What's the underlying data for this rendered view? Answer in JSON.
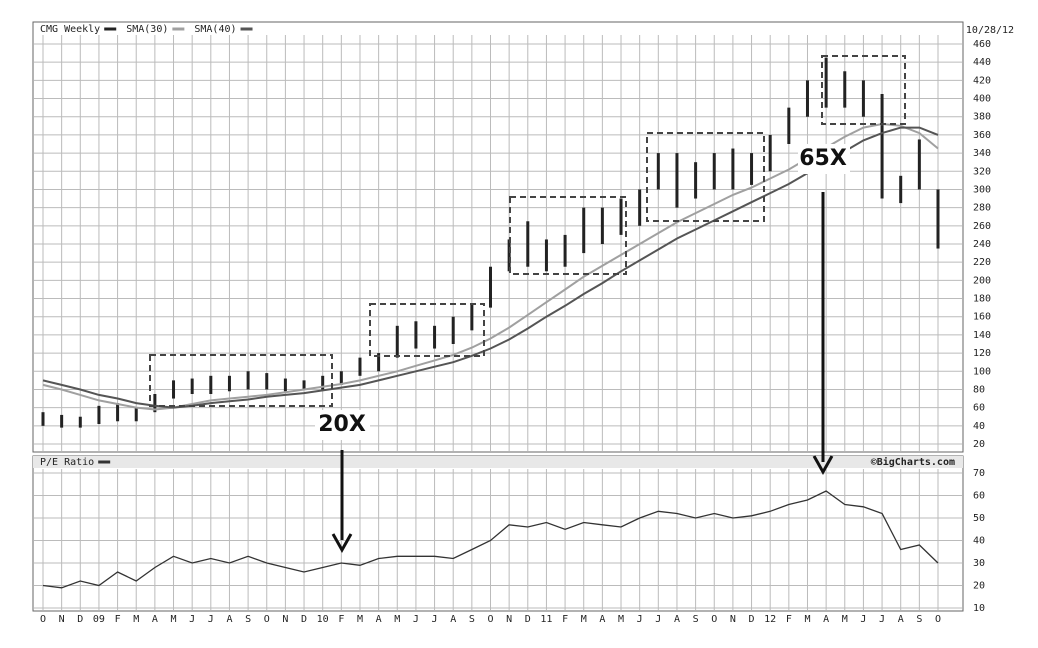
{
  "chart_data": [
    {
      "type": "range-bar",
      "date": "10/28/12",
      "annotations": [
        "20X",
        "65X"
      ],
      "ylim": [
        20,
        460
      ],
      "yticks": [
        20,
        40,
        60,
        80,
        100,
        120,
        140,
        160,
        180,
        200,
        220,
        240,
        260,
        280,
        300,
        320,
        340,
        360,
        380,
        400,
        420,
        440,
        460
      ],
      "grid": true,
      "series": [
        {
          "name": "CMG Weekly",
          "color": "#222222",
          "low": [
            40,
            38,
            38,
            42,
            45,
            45,
            55,
            70,
            75,
            75,
            78,
            80,
            80,
            78,
            80,
            80,
            85,
            95,
            100,
            115,
            125,
            125,
            130,
            145,
            170,
            210,
            215,
            210,
            215,
            230,
            240,
            250,
            260,
            300,
            280,
            290,
            300,
            300,
            305,
            320,
            350,
            380,
            390,
            390,
            380,
            290,
            285,
            300,
            235
          ],
          "high": [
            55,
            52,
            50,
            62,
            65,
            60,
            75,
            90,
            92,
            95,
            95,
            100,
            98,
            92,
            90,
            95,
            100,
            115,
            120,
            150,
            155,
            150,
            160,
            175,
            215,
            245,
            265,
            245,
            250,
            280,
            280,
            290,
            300,
            340,
            340,
            330,
            340,
            345,
            340,
            360,
            390,
            420,
            445,
            430,
            420,
            405,
            315,
            355,
            300
          ]
        },
        {
          "name": "SMA(30)",
          "color": "#a0a0a0",
          "values": [
            85,
            80,
            74,
            68,
            64,
            60,
            58,
            60,
            64,
            68,
            70,
            72,
            74,
            77,
            80,
            83,
            86,
            90,
            95,
            100,
            106,
            112,
            118,
            126,
            136,
            148,
            162,
            176,
            190,
            204,
            216,
            228,
            240,
            252,
            264,
            274,
            284,
            294,
            302,
            312,
            322,
            334,
            346,
            358,
            368,
            372,
            370,
            362,
            345
          ]
        },
        {
          "name": "SMA(40)",
          "color": "#555555",
          "values": [
            90,
            85,
            80,
            74,
            70,
            65,
            62,
            60,
            62,
            65,
            67,
            69,
            72,
            74,
            76,
            79,
            82,
            85,
            90,
            95,
            100,
            105,
            110,
            117,
            125,
            135,
            147,
            160,
            172,
            185,
            197,
            210,
            222,
            234,
            246,
            256,
            266,
            276,
            286,
            296,
            306,
            318,
            330,
            342,
            354,
            362,
            368,
            368,
            360
          ]
        }
      ]
    },
    {
      "type": "line",
      "source": "©BigCharts.com",
      "categories": [
        "O",
        "N",
        "D",
        "09",
        "F",
        "M",
        "A",
        "M",
        "J",
        "J",
        "A",
        "S",
        "O",
        "N",
        "D",
        "10",
        "F",
        "M",
        "A",
        "M",
        "J",
        "J",
        "A",
        "S",
        "O",
        "N",
        "D",
        "11",
        "F",
        "M",
        "A",
        "M",
        "J",
        "J",
        "A",
        "S",
        "O",
        "N",
        "D",
        "12",
        "F",
        "M",
        "A",
        "M",
        "J",
        "J",
        "A",
        "S",
        "O"
      ],
      "ylim": [
        10,
        70
      ],
      "yticks": [
        10,
        20,
        30,
        40,
        50,
        60,
        70
      ],
      "grid": true,
      "series": [
        {
          "name": "P/E Ratio",
          "color": "#333333",
          "values": [
            20,
            19,
            22,
            20,
            26,
            22,
            28,
            33,
            30,
            32,
            30,
            33,
            30,
            28,
            26,
            28,
            30,
            29,
            32,
            33,
            33,
            33,
            32,
            36,
            40,
            47,
            46,
            48,
            45,
            48,
            47,
            46,
            50,
            53,
            52,
            50,
            52,
            50,
            51,
            53,
            56,
            58,
            62,
            56,
            55,
            52,
            36,
            38,
            30
          ]
        }
      ]
    }
  ]
}
